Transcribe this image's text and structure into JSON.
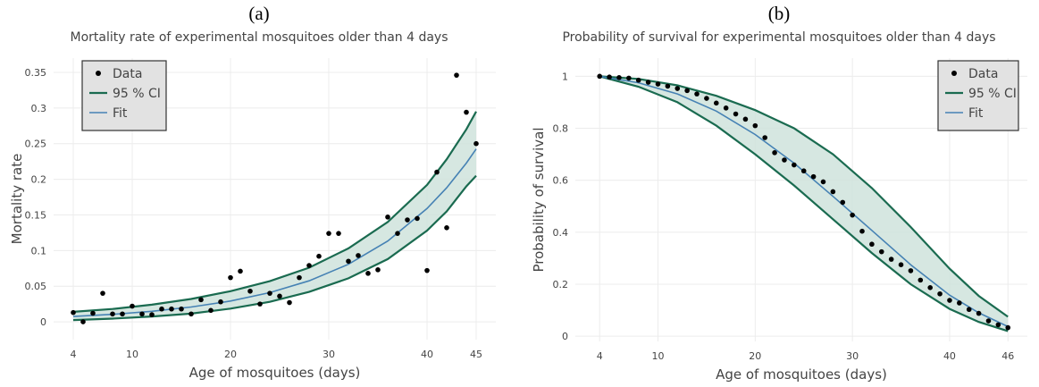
{
  "panels": [
    {
      "letter": "(a)",
      "title": "Mortality rate of experimental mosquitoes older than 4 days",
      "xlabel": "Age of mosquitoes (days)",
      "ylabel": "Mortality rate",
      "legend": [
        "Data",
        "95 % CI",
        "Fit"
      ]
    },
    {
      "letter": "(b)",
      "title": "Probability of survival for experimental mosquitoes older than 4 days",
      "xlabel": "Age of mosquitoes (days)",
      "ylabel": "Probability of survival",
      "legend": [
        "Data",
        "95 % CI",
        "Fit"
      ]
    }
  ],
  "colors": {
    "data": "#000000",
    "ci_line": "#1a6b50",
    "ci_fill": "#cfe3dc",
    "fit": "#4682b4",
    "grid": "#ececec",
    "legend_bg": "#e2e2e2",
    "legend_border": "#333333"
  },
  "chart_data": [
    {
      "type": "scatter",
      "title": "Mortality rate of experimental mosquitoes older than 4 days",
      "xlabel": "Age of mosquitoes (days)",
      "ylabel": "Mortality rate",
      "xlim": [
        2,
        47
      ],
      "ylim": [
        -0.025,
        0.37
      ],
      "xticks": [
        4,
        10,
        20,
        30,
        40,
        45
      ],
      "yticks": [
        0,
        0.05,
        0.1,
        0.15,
        0.2,
        0.25,
        0.3,
        0.35
      ],
      "ytick_labels": [
        "0",
        "0.05",
        "0.1",
        "0.15",
        "0.2",
        "0.25",
        "0.3",
        "0.35"
      ],
      "grid": true,
      "legend_position": "top-left",
      "series": [
        {
          "name": "Data",
          "kind": "points",
          "x": [
            4,
            5,
            6,
            7,
            8,
            9,
            10,
            11,
            12,
            13,
            14,
            15,
            16,
            17,
            18,
            19,
            20,
            21,
            22,
            23,
            24,
            25,
            26,
            27,
            28,
            29,
            30,
            31,
            32,
            33,
            34,
            35,
            36,
            37,
            38,
            39,
            40,
            41,
            42,
            43,
            44,
            45
          ],
          "y": [
            0.013,
            0.0,
            0.012,
            0.04,
            0.011,
            0.011,
            0.022,
            0.011,
            0.01,
            0.018,
            0.018,
            0.018,
            0.011,
            0.031,
            0.016,
            0.028,
            0.062,
            0.071,
            0.043,
            0.025,
            0.04,
            0.036,
            0.027,
            0.062,
            0.079,
            0.092,
            0.124,
            0.124,
            0.085,
            0.093,
            0.068,
            0.073,
            0.147,
            0.124,
            0.143,
            0.145,
            0.072,
            0.21,
            0.132,
            0.346,
            0.294,
            0.25
          ]
        },
        {
          "name": "Fit",
          "kind": "line",
          "x": [
            4,
            8,
            12,
            16,
            20,
            24,
            28,
            32,
            36,
            40,
            42,
            44,
            45
          ],
          "y": [
            0.0075,
            0.0105,
            0.0148,
            0.0208,
            0.0292,
            0.041,
            0.0575,
            0.0807,
            0.1133,
            0.159,
            0.188,
            0.2227,
            0.2425
          ]
        },
        {
          "name": "95 % CI",
          "kind": "band",
          "x": [
            4,
            8,
            12,
            16,
            20,
            24,
            28,
            32,
            36,
            40,
            42,
            44,
            45
          ],
          "lower": [
            0.0025,
            0.0045,
            0.0075,
            0.0115,
            0.0185,
            0.028,
            0.042,
            0.061,
            0.088,
            0.128,
            0.155,
            0.19,
            0.205
          ],
          "upper": [
            0.014,
            0.018,
            0.024,
            0.032,
            0.043,
            0.057,
            0.076,
            0.103,
            0.14,
            0.192,
            0.228,
            0.27,
            0.295
          ]
        }
      ]
    },
    {
      "type": "scatter",
      "title": "Probability of survival for experimental mosquitoes older than 4 days",
      "xlabel": "Age of mosquitoes (days)",
      "ylabel": "Probability of survival",
      "xlim": [
        1.5,
        48
      ],
      "ylim": [
        -0.02,
        1.07
      ],
      "xticks": [
        4,
        10,
        20,
        30,
        40,
        46
      ],
      "yticks": [
        0,
        0.2,
        0.4,
        0.6,
        0.8,
        1
      ],
      "ytick_labels": [
        "0",
        "0.2",
        "0.4",
        "0.6",
        "0.8",
        "1"
      ],
      "grid": true,
      "legend_position": "top-right",
      "series": [
        {
          "name": "Data",
          "kind": "points",
          "x": [
            4,
            5,
            6,
            7,
            8,
            9,
            10,
            11,
            12,
            13,
            14,
            15,
            16,
            17,
            18,
            19,
            20,
            21,
            22,
            23,
            24,
            25,
            26,
            27,
            28,
            29,
            30,
            31,
            32,
            33,
            34,
            35,
            36,
            37,
            38,
            39,
            40,
            41,
            42,
            43,
            44,
            45,
            46
          ],
          "y": [
            1.0,
            0.997,
            0.995,
            0.993,
            0.985,
            0.977,
            0.97,
            0.962,
            0.953,
            0.945,
            0.932,
            0.915,
            0.897,
            0.878,
            0.855,
            0.835,
            0.81,
            0.764,
            0.706,
            0.678,
            0.659,
            0.636,
            0.614,
            0.594,
            0.556,
            0.515,
            0.466,
            0.404,
            0.354,
            0.325,
            0.296,
            0.275,
            0.252,
            0.216,
            0.187,
            0.163,
            0.138,
            0.128,
            0.103,
            0.088,
            0.059,
            0.044,
            0.033
          ]
        },
        {
          "name": "Fit",
          "kind": "line",
          "x": [
            4,
            8,
            12,
            16,
            20,
            24,
            28,
            32,
            36,
            40,
            43,
            46
          ],
          "y": [
            1.0,
            0.975,
            0.932,
            0.866,
            0.776,
            0.666,
            0.538,
            0.407,
            0.275,
            0.158,
            0.09,
            0.037
          ]
        },
        {
          "name": "95 % CI",
          "kind": "band",
          "x": [
            4,
            8,
            12,
            16,
            20,
            24,
            28,
            32,
            36,
            40,
            43,
            46
          ],
          "lower": [
            1.0,
            0.96,
            0.9,
            0.81,
            0.7,
            0.58,
            0.45,
            0.32,
            0.2,
            0.105,
            0.055,
            0.02
          ],
          "upper": [
            1.0,
            0.99,
            0.965,
            0.925,
            0.87,
            0.8,
            0.7,
            0.57,
            0.42,
            0.26,
            0.155,
            0.075
          ]
        }
      ]
    }
  ]
}
